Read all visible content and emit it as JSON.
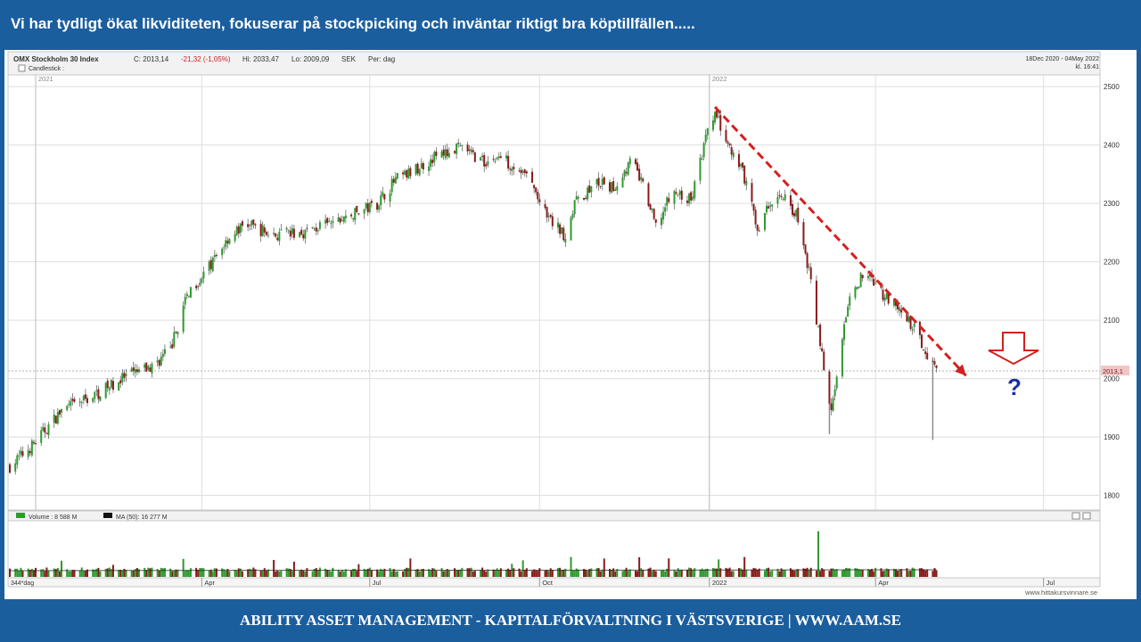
{
  "slide": {
    "title": "Vi har tydligt ökat likviditeten, fokuserar på stockpicking och inväntar riktigt bra köptillfällen.....",
    "footer": "ABILITY ASSET MANAGEMENT -  KAPITALFÖRVALTNING I VÄSTSVERIGE   |   WWW.AAM.SE"
  },
  "chart_header": {
    "name": "OMX Stockholm 30 Index",
    "close": "C: 2013,14",
    "change": "-21,32 (-1,05%)",
    "high": "Hi: 2033,47",
    "low": "Lo: 2009,09",
    "currency": "SEK",
    "period": "Per: dag",
    "chart_type_label": "Candlestick :",
    "range": "18Dec 2020 - 04May 2022",
    "time": "kl. 16:41"
  },
  "volume_header": {
    "volume": "Volume : 8 588 M",
    "ma": "MA (50): 16 277 M"
  },
  "colors": {
    "up": "#2e9a2e",
    "down": "#8b1a1a",
    "trendline": "#d42020",
    "arrow": "#d42020",
    "question": "#1a2fa0"
  },
  "annotations": {
    "question_mark": "?",
    "last_price_tag": "2013,1",
    "source": "www.hittakursvinnare.se",
    "bottom_left_label": "344*dag"
  },
  "chart_data": {
    "type": "candlestick",
    "title": "OMX Stockholm 30 Index",
    "y_ticks": [
      1800,
      1900,
      2000,
      2100,
      2200,
      2300,
      2400,
      2500
    ],
    "ylim": [
      1775,
      2520
    ],
    "x_period": [
      "2020-12-18",
      "2022-05-04"
    ],
    "year_labels": [
      {
        "label": "2021",
        "date": "2021-01-01"
      },
      {
        "label": "2022",
        "date": "2022-01-01"
      }
    ],
    "month_ticks": [
      {
        "label": "Apr",
        "date": "2021-04-01"
      },
      {
        "label": "Jul",
        "date": "2021-07-01"
      },
      {
        "label": "Oct",
        "date": "2021-10-01"
      },
      {
        "label": "2022",
        "date": "2022-01-01"
      },
      {
        "label": "Apr",
        "date": "2022-04-01"
      },
      {
        "label": "Jul",
        "date": "2022-07-01"
      }
    ],
    "price_path": [
      [
        "2020-12-18",
        1850
      ],
      [
        "2020-12-30",
        1885
      ],
      [
        "2021-01-15",
        1945
      ],
      [
        "2021-02-01",
        1970
      ],
      [
        "2021-02-20",
        2005
      ],
      [
        "2021-03-05",
        2020
      ],
      [
        "2021-03-15",
        2050
      ],
      [
        "2021-03-25",
        2150
      ],
      [
        "2021-04-05",
        2190
      ],
      [
        "2021-04-15",
        2240
      ],
      [
        "2021-04-25",
        2265
      ],
      [
        "2021-05-10",
        2245
      ],
      [
        "2021-05-25",
        2250
      ],
      [
        "2021-06-10",
        2265
      ],
      [
        "2021-06-25",
        2285
      ],
      [
        "2021-07-05",
        2300
      ],
      [
        "2021-07-15",
        2340
      ],
      [
        "2021-07-25",
        2355
      ],
      [
        "2021-08-05",
        2380
      ],
      [
        "2021-08-20",
        2395
      ],
      [
        "2021-09-01",
        2370
      ],
      [
        "2021-09-10",
        2380
      ],
      [
        "2021-09-25",
        2345
      ],
      [
        "2021-10-05",
        2275
      ],
      [
        "2021-10-15",
        2245
      ],
      [
        "2021-10-20",
        2300
      ],
      [
        "2021-11-01",
        2335
      ],
      [
        "2021-11-10",
        2325
      ],
      [
        "2021-11-20",
        2375
      ],
      [
        "2021-11-26",
        2330
      ],
      [
        "2021-12-03",
        2260
      ],
      [
        "2021-12-12",
        2320
      ],
      [
        "2021-12-22",
        2305
      ],
      [
        "2021-12-30",
        2410
      ],
      [
        "2022-01-04",
        2455
      ],
      [
        "2022-01-12",
        2390
      ],
      [
        "2022-01-20",
        2345
      ],
      [
        "2022-01-27",
        2255
      ],
      [
        "2022-02-03",
        2300
      ],
      [
        "2022-02-10",
        2315
      ],
      [
        "2022-02-17",
        2280
      ],
      [
        "2022-02-24",
        2185
      ],
      [
        "2022-03-03",
        2040
      ],
      [
        "2022-03-08",
        1950
      ],
      [
        "2022-03-14",
        2070
      ],
      [
        "2022-03-20",
        2160
      ],
      [
        "2022-03-28",
        2180
      ],
      [
        "2022-04-05",
        2145
      ],
      [
        "2022-04-14",
        2115
      ],
      [
        "2022-04-22",
        2085
      ],
      [
        "2022-04-28",
        2050
      ],
      [
        "2022-05-04",
        2013
      ]
    ],
    "big_wicks": [
      {
        "date": "2022-03-07",
        "low": 1905
      },
      {
        "date": "2022-05-02",
        "low": 1895
      }
    ],
    "trendline": {
      "from": [
        "2022-01-04",
        2465
      ],
      "to": [
        "2022-05-20",
        2005
      ]
    },
    "last_price": 2013.14,
    "volume": {
      "unit": "M",
      "last": 8588,
      "ma50": 16277,
      "y_tick": "0",
      "spikes": [
        {
          "date": "2022-03-01",
          "value": 48000
        }
      ]
    }
  }
}
